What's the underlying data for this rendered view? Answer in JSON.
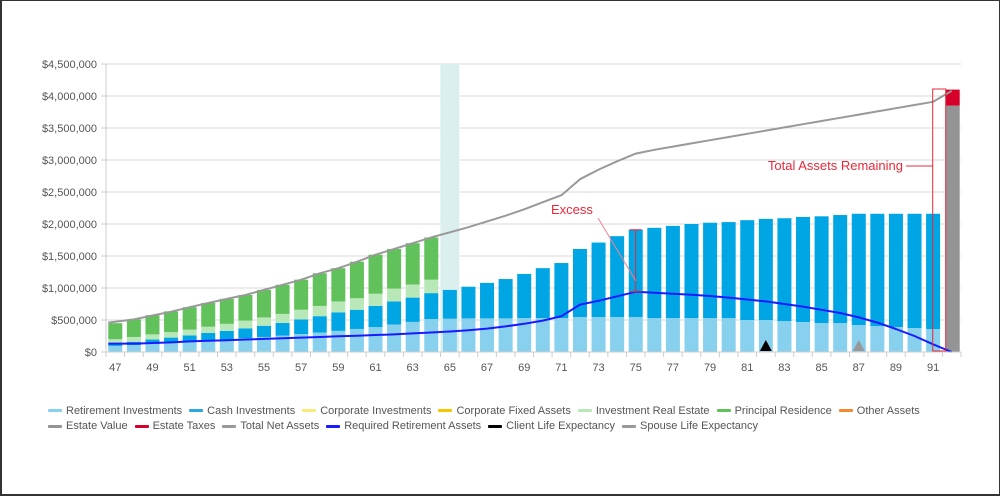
{
  "chart_data": {
    "type": "bar",
    "title": "",
    "xlabel": "",
    "ylabel": "",
    "ylim": [
      0,
      4500000
    ],
    "grid": true,
    "y_ticks": [
      "$0",
      "$500,000",
      "$1,000,000",
      "$1,500,000",
      "$2,000,000",
      "$2,500,000",
      "$3,000,000",
      "$3,500,000",
      "$4,000,000",
      "$4,500,000"
    ],
    "y_tick_values": [
      0,
      500000,
      1000000,
      1500000,
      2000000,
      2500000,
      3000000,
      3500000,
      4000000,
      4500000
    ],
    "x": [
      47,
      48,
      49,
      50,
      51,
      52,
      53,
      54,
      55,
      56,
      57,
      58,
      59,
      60,
      61,
      62,
      63,
      64,
      65,
      66,
      67,
      68,
      69,
      70,
      71,
      72,
      73,
      74,
      75,
      76,
      77,
      78,
      79,
      80,
      81,
      82,
      83,
      84,
      85,
      86,
      87,
      88,
      89,
      90,
      91,
      92
    ],
    "x_tick_labels": [
      "47",
      "49",
      "51",
      "53",
      "55",
      "57",
      "59",
      "61",
      "63",
      "65",
      "67",
      "69",
      "71",
      "73",
      "75",
      "77",
      "79",
      "81",
      "83",
      "85",
      "87",
      "89",
      "91"
    ],
    "highlight_age": 65,
    "series": [
      {
        "name": "Retirement Investments",
        "kind": "bar",
        "color": "#87d0ee",
        "values": [
          95000,
          110000,
          125000,
          140000,
          155000,
          175000,
          195000,
          215000,
          235000,
          255000,
          280000,
          305000,
          330000,
          360000,
          390000,
          430000,
          470000,
          515000,
          520000,
          525000,
          525000,
          525000,
          530000,
          530000,
          530000,
          547000,
          547000,
          547000,
          547000,
          530000,
          530000,
          530000,
          530000,
          530000,
          500000,
          500000,
          484000,
          469000,
          453000,
          453000,
          422000,
          406000,
          391000,
          375000,
          359000,
          0
        ]
      },
      {
        "name": "Cash Investments",
        "kind": "bar",
        "color": "#00a6e4",
        "values": [
          35000,
          50000,
          70000,
          85000,
          105000,
          125000,
          135000,
          155000,
          175000,
          200000,
          230000,
          255000,
          290000,
          300000,
          330000,
          360000,
          380000,
          405000,
          450000,
          495000,
          555000,
          615000,
          690000,
          780000,
          860000,
          1063000,
          1163000,
          1263000,
          1363000,
          1410000,
          1440000,
          1470000,
          1490000,
          1500000,
          1560000,
          1580000,
          1606000,
          1641000,
          1667000,
          1687000,
          1738000,
          1754000,
          1769000,
          1785000,
          1801000,
          0
        ]
      },
      {
        "name": "Corporate Investments",
        "kind": "bar",
        "color": "#f7e96b",
        "values": []
      },
      {
        "name": "Corporate Fixed Assets",
        "kind": "bar",
        "color": "#f4c700",
        "values": []
      },
      {
        "name": "Investment Real Estate",
        "kind": "bar",
        "color": "#b8e8b8",
        "values": [
          70000,
          75000,
          80000,
          85000,
          90000,
          95000,
          110000,
          120000,
          130000,
          140000,
          150000,
          160000,
          170000,
          180000,
          190000,
          200000,
          205000,
          210000,
          0,
          0,
          0,
          0,
          0,
          0,
          0,
          0,
          0,
          0,
          0,
          0,
          0,
          0,
          0,
          0,
          0,
          0,
          0,
          0,
          0,
          0,
          0,
          0,
          0,
          0,
          0,
          0
        ]
      },
      {
        "name": "Principal Residence",
        "kind": "bar",
        "color": "#61c15a",
        "values": [
          250000,
          275000,
          300000,
          325000,
          350000,
          370000,
          390000,
          400000,
          430000,
          455000,
          470000,
          510000,
          520000,
          570000,
          610000,
          620000,
          645000,
          660000,
          0,
          0,
          0,
          0,
          0,
          0,
          0,
          0,
          0,
          0,
          0,
          0,
          0,
          0,
          0,
          0,
          0,
          0,
          0,
          0,
          0,
          0,
          0,
          0,
          0,
          0,
          0,
          0
        ]
      },
      {
        "name": "Other Assets",
        "kind": "bar",
        "color": "#f28b30",
        "values": []
      },
      {
        "name": "Estate Value",
        "kind": "bar",
        "color": "#949494",
        "values": [
          0,
          0,
          0,
          0,
          0,
          0,
          0,
          0,
          0,
          0,
          0,
          0,
          0,
          0,
          0,
          0,
          0,
          0,
          0,
          0,
          0,
          0,
          0,
          0,
          0,
          0,
          0,
          0,
          0,
          0,
          0,
          0,
          0,
          0,
          0,
          0,
          0,
          0,
          0,
          0,
          0,
          0,
          0,
          0,
          0,
          3850000
        ]
      },
      {
        "name": "Estate Taxes",
        "kind": "bar",
        "color": "#d6002a",
        "values": [
          0,
          0,
          0,
          0,
          0,
          0,
          0,
          0,
          0,
          0,
          0,
          0,
          0,
          0,
          0,
          0,
          0,
          0,
          0,
          0,
          0,
          0,
          0,
          0,
          0,
          0,
          0,
          0,
          0,
          0,
          0,
          0,
          0,
          0,
          0,
          0,
          0,
          0,
          0,
          0,
          0,
          0,
          0,
          0,
          0,
          250000
        ]
      },
      {
        "name": "Total Net Assets",
        "kind": "line",
        "color": "#999999",
        "values": [
          460000,
          510000,
          570000,
          630000,
          700000,
          765000,
          830000,
          890000,
          970000,
          1050000,
          1130000,
          1230000,
          1310000,
          1410000,
          1520000,
          1610000,
          1700000,
          1790000,
          1870000,
          1950000,
          2040000,
          2130000,
          2230000,
          2340000,
          2450000,
          2700000,
          2850000,
          2980000,
          3100000,
          3160000,
          3210000,
          3260000,
          3310000,
          3360000,
          3410000,
          3460000,
          3510000,
          3560000,
          3610000,
          3660000,
          3710000,
          3760000,
          3810000,
          3860000,
          3910000,
          4080000
        ]
      },
      {
        "name": "Required Retirement Assets",
        "kind": "line",
        "color": "#1a1aff",
        "values": [
          null,
          130000,
          140000,
          150000,
          165000,
          175000,
          185000,
          195000,
          205000,
          215000,
          225000,
          235000,
          245000,
          255000,
          265000,
          275000,
          290000,
          305000,
          320000,
          340000,
          365000,
          400000,
          440000,
          490000,
          560000,
          740000,
          800000,
          870000,
          940000,
          925000,
          910000,
          895000,
          875000,
          850000,
          820000,
          790000,
          750000,
          710000,
          660000,
          610000,
          540000,
          460000,
          360000,
          250000,
          120000,
          0
        ]
      },
      {
        "name": "Client Life Expectancy",
        "kind": "marker",
        "color": "#000000",
        "age": 82
      },
      {
        "name": "Spouse Life Expectancy",
        "kind": "marker",
        "color": "#999999",
        "age": 87
      }
    ],
    "annotations": [
      {
        "text": "Excess",
        "age": 75,
        "from": 940000,
        "to": 1910000
      },
      {
        "text": "Total Assets Remaining",
        "age": 92
      }
    ],
    "legend": {
      "placement": "bottom",
      "items": [
        {
          "label": "Retirement Investments",
          "color": "#87d0ee"
        },
        {
          "label": "Cash Investments",
          "color": "#2ea6e0"
        },
        {
          "label": "Corporate Investments",
          "color": "#f7ec7a"
        },
        {
          "label": "Corporate Fixed Assets",
          "color": "#f4c700"
        },
        {
          "label": "Investment Real Estate",
          "color": "#b8e8b8"
        },
        {
          "label": "Principal Residence",
          "color": "#61c15a"
        },
        {
          "label": "Other Assets",
          "color": "#f28b30"
        },
        {
          "label": "Estate Value",
          "color": "#949494"
        },
        {
          "label": "Estate Taxes",
          "color": "#d6002a"
        },
        {
          "label": "Total Net Assets",
          "color": "#999999"
        },
        {
          "label": "Required Retirement Assets",
          "color": "#1a1aff"
        },
        {
          "label": "Client Life Expectancy",
          "color": "#000000"
        },
        {
          "label": "Spouse Life Expectancy",
          "color": "#999999"
        }
      ]
    }
  }
}
